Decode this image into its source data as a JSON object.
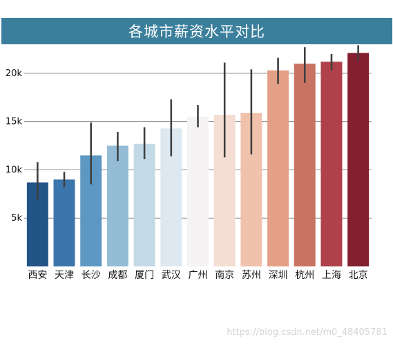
{
  "chart_data": {
    "type": "bar",
    "title": "各城市薪资水平对比",
    "xlabel": "",
    "ylabel": "",
    "categories": [
      "西安",
      "天津",
      "长沙",
      "成都",
      "厦门",
      "武汉",
      "广州",
      "南京",
      "苏州",
      "深圳",
      "杭州",
      "上海",
      "北京"
    ],
    "values": [
      8700,
      9000,
      11500,
      12500,
      12700,
      14300,
      15500,
      15700,
      15900,
      20300,
      21000,
      21200,
      22100
    ],
    "error_bars": [
      [
        6900,
        10800
      ],
      [
        8200,
        9800
      ],
      [
        8500,
        14900
      ],
      [
        10900,
        13900
      ],
      [
        11100,
        14400
      ],
      [
        11400,
        17300
      ],
      [
        14400,
        16700
      ],
      [
        11300,
        21100
      ],
      [
        11600,
        20400
      ],
      [
        18900,
        21600
      ],
      [
        19000,
        22700
      ],
      [
        20300,
        22000
      ],
      [
        21300,
        22900
      ]
    ],
    "colors": [
      "#235487",
      "#3a76ab",
      "#5c98c2",
      "#94bdd5",
      "#c4d9e8",
      "#dde8f1",
      "#f5f3f3",
      "#f4ddd3",
      "#f0c2ab",
      "#e4a086",
      "#c97363",
      "#b0414b",
      "#841e31"
    ],
    "yticks": [
      "5k",
      "10k",
      "15k",
      "20k"
    ],
    "ytick_values": [
      5000,
      10000,
      15000,
      20000
    ],
    "ylim": [
      0,
      23000
    ],
    "grid": "horizontal",
    "legend": "none"
  },
  "watermark": "https://blog.csdn.net/m0_48405781"
}
